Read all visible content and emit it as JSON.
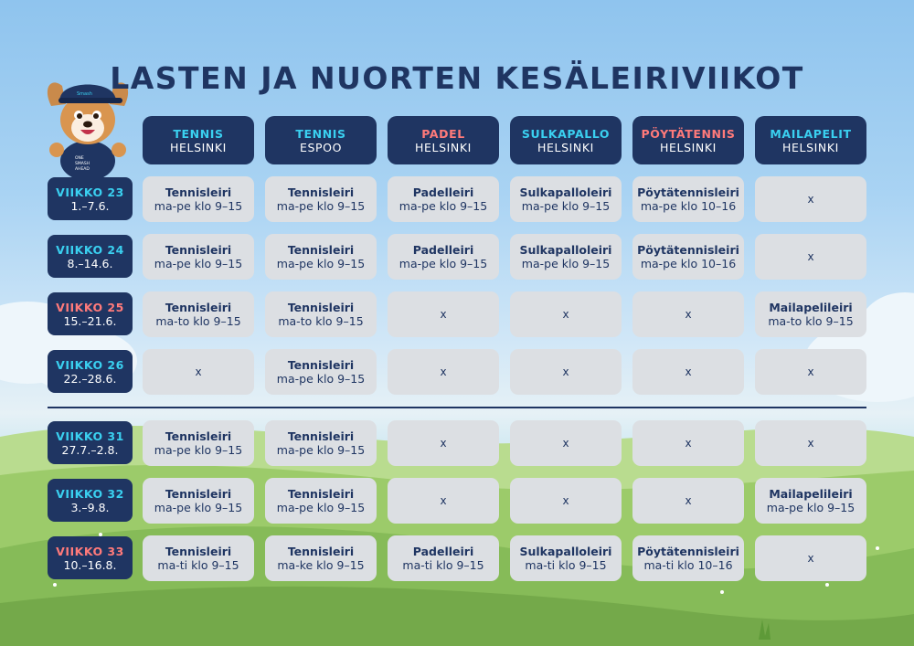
{
  "title": "LASTEN JA NUORTEN KESÄLEIRIVIIKOT",
  "colors": {
    "navy": "#1f3562",
    "cyan": "#3ad0f0",
    "coral": "#ff7a7a",
    "cell_gray": "#dcdfe3"
  },
  "mascot": {
    "icon": "dog-mascot-icon",
    "cap_text": "Smash",
    "shirt_text": "ONE SMASH AHEAD"
  },
  "columns": [
    {
      "sport": "TENNIS",
      "city": "HELSINKI",
      "color": "#3ad0f0"
    },
    {
      "sport": "TENNIS",
      "city": "ESPOO",
      "color": "#3ad0f0"
    },
    {
      "sport": "PADEL",
      "city": "HELSINKI",
      "color": "#ff7a7a"
    },
    {
      "sport": "SULKAPALLO",
      "city": "HELSINKI",
      "color": "#3ad0f0"
    },
    {
      "sport": "PÖYTÄTENNIS",
      "city": "HELSINKI",
      "color": "#ff7a7a"
    },
    {
      "sport": "MAILAPELIT",
      "city": "HELSINKI",
      "color": "#3ad0f0"
    }
  ],
  "weeks": [
    {
      "label": "VIIKKO 23",
      "dates": "1.–7.6.",
      "color": "#3ad0f0",
      "cells": [
        {
          "camp": "Tennisleiri",
          "time": "ma-pe klo 9–15"
        },
        {
          "camp": "Tennisleiri",
          "time": "ma-pe klo 9–15"
        },
        {
          "camp": "Padelleiri",
          "time": "ma-pe klo 9–15"
        },
        {
          "camp": "Sulkapalloleiri",
          "time": "ma-pe klo 9–15"
        },
        {
          "camp": "Pöytätennisleiri",
          "time": "ma-pe klo 10–16"
        },
        {
          "none": "x"
        }
      ]
    },
    {
      "label": "VIIKKO 24",
      "dates": "8.–14.6.",
      "color": "#3ad0f0",
      "cells": [
        {
          "camp": "Tennisleiri",
          "time": "ma-pe klo 9–15"
        },
        {
          "camp": "Tennisleiri",
          "time": "ma-pe klo 9–15"
        },
        {
          "camp": "Padelleiri",
          "time": "ma-pe klo 9–15"
        },
        {
          "camp": "Sulkapalloleiri",
          "time": "ma-pe klo 9–15"
        },
        {
          "camp": "Pöytätennisleiri",
          "time": "ma-pe klo 10–16"
        },
        {
          "none": "x"
        }
      ]
    },
    {
      "label": "VIIKKO 25",
      "dates": "15.–21.6.",
      "color": "#ff7a7a",
      "cells": [
        {
          "camp": "Tennisleiri",
          "time": "ma-to klo 9–15"
        },
        {
          "camp": "Tennisleiri",
          "time": "ma-to klo 9–15"
        },
        {
          "none": "x"
        },
        {
          "none": "x"
        },
        {
          "none": "x"
        },
        {
          "camp": "Mailapelileiri",
          "time": "ma-to klo 9–15"
        }
      ]
    },
    {
      "label": "VIIKKO 26",
      "dates": "22.–28.6.",
      "color": "#3ad0f0",
      "cells": [
        {
          "none": "x"
        },
        {
          "camp": "Tennisleiri",
          "time": "ma-pe klo 9–15"
        },
        {
          "none": "x"
        },
        {
          "none": "x"
        },
        {
          "none": "x"
        },
        {
          "none": "x"
        }
      ]
    },
    {
      "label": "VIIKKO 31",
      "dates": "27.7.–2.8.",
      "color": "#3ad0f0",
      "cells": [
        {
          "camp": "Tennisleiri",
          "time": "ma-pe klo 9–15"
        },
        {
          "camp": "Tennisleiri",
          "time": "ma-pe klo 9–15"
        },
        {
          "none": "x"
        },
        {
          "none": "x"
        },
        {
          "none": "x"
        },
        {
          "none": "x"
        }
      ]
    },
    {
      "label": "VIIKKO 32",
      "dates": "3.–9.8.",
      "color": "#3ad0f0",
      "cells": [
        {
          "camp": "Tennisleiri",
          "time": "ma-pe klo 9–15"
        },
        {
          "camp": "Tennisleiri",
          "time": "ma-pe klo 9–15"
        },
        {
          "none": "x"
        },
        {
          "none": "x"
        },
        {
          "none": "x"
        },
        {
          "camp": "Mailapelileiri",
          "time": "ma-pe klo 9–15"
        }
      ]
    },
    {
      "label": "VIIKKO 33",
      "dates": "10.–16.8.",
      "color": "#ff7a7a",
      "cells": [
        {
          "camp": "Tennisleiri",
          "time": "ma-ti klo 9–15"
        },
        {
          "camp": "Tennisleiri",
          "time": "ma-ke klo 9–15"
        },
        {
          "camp": "Padelleiri",
          "time": "ma-ti klo 9–15"
        },
        {
          "camp": "Sulkapalloleiri",
          "time": "ma-ti klo 9–15"
        },
        {
          "camp": "Pöytätennisleiri",
          "time": "ma-ti klo 10–16"
        },
        {
          "none": "x"
        }
      ]
    }
  ]
}
